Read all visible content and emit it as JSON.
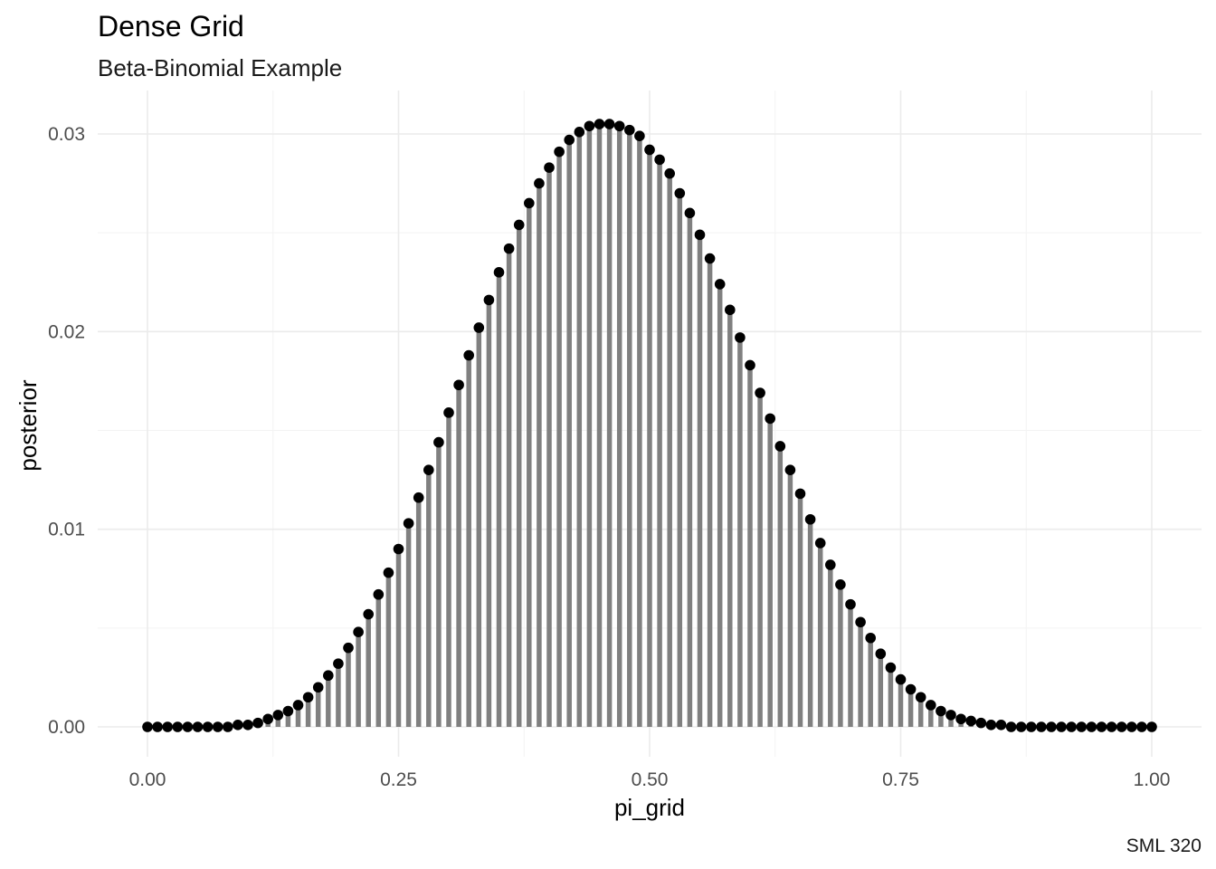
{
  "chart_data": {
    "type": "lollipop",
    "title": "Dense Grid",
    "subtitle": "Beta-Binomial Example",
    "xlabel": "pi_grid",
    "ylabel": "posterior",
    "caption": "SML 320",
    "xlim": [
      0,
      1
    ],
    "ylim": [
      0,
      0.031
    ],
    "x_ticks": [
      0,
      0.25,
      0.5,
      0.75,
      1
    ],
    "x_tick_labels": [
      "0.00",
      "0.25",
      "0.50",
      "0.75",
      "1.00"
    ],
    "y_ticks": [
      0,
      0.01,
      0.02,
      0.03
    ],
    "y_tick_labels": [
      "0.00",
      "0.01",
      "0.02",
      "0.03"
    ],
    "grid": true,
    "legend": "none",
    "segment_color": "#808080",
    "point_color": "#000000",
    "x": [
      0.0,
      0.01,
      0.02,
      0.03,
      0.04,
      0.05,
      0.06,
      0.07,
      0.08,
      0.09,
      0.1,
      0.11,
      0.12,
      0.13,
      0.14,
      0.15,
      0.16,
      0.17,
      0.18,
      0.19,
      0.2,
      0.21,
      0.22,
      0.23,
      0.24,
      0.25,
      0.26,
      0.27,
      0.28,
      0.29,
      0.3,
      0.31,
      0.32,
      0.33,
      0.34,
      0.35,
      0.36,
      0.37,
      0.38,
      0.39,
      0.4,
      0.41,
      0.42,
      0.43,
      0.44,
      0.45,
      0.46,
      0.47,
      0.48,
      0.49,
      0.5,
      0.51,
      0.52,
      0.53,
      0.54,
      0.55,
      0.56,
      0.57,
      0.58,
      0.59,
      0.6,
      0.61,
      0.62,
      0.63,
      0.64,
      0.65,
      0.66,
      0.67,
      0.68,
      0.69,
      0.7,
      0.71,
      0.72,
      0.73,
      0.74,
      0.75,
      0.76,
      0.77,
      0.78,
      0.79,
      0.8,
      0.81,
      0.82,
      0.83,
      0.84,
      0.85,
      0.86,
      0.87,
      0.88,
      0.89,
      0.9,
      0.91,
      0.92,
      0.93,
      0.94,
      0.95,
      0.96,
      0.97,
      0.98,
      0.99,
      1.0
    ],
    "y": [
      0.0,
      0.0,
      0.0,
      0.0,
      0.0,
      0.0,
      0.0,
      0.0,
      0.0,
      0.0001,
      0.0001,
      0.0002,
      0.0004,
      0.0006,
      0.0008,
      0.0011,
      0.0015,
      0.002,
      0.0026,
      0.0032,
      0.004,
      0.0048,
      0.0057,
      0.0067,
      0.0078,
      0.009,
      0.0103,
      0.0116,
      0.013,
      0.0144,
      0.0159,
      0.0173,
      0.0188,
      0.0202,
      0.0216,
      0.023,
      0.0242,
      0.0254,
      0.0265,
      0.0275,
      0.0283,
      0.0291,
      0.0297,
      0.0301,
      0.0304,
      0.0305,
      0.0305,
      0.0304,
      0.0302,
      0.0299,
      0.0292,
      0.0287,
      0.028,
      0.027,
      0.026,
      0.0249,
      0.0237,
      0.0224,
      0.0211,
      0.0197,
      0.0183,
      0.0169,
      0.0156,
      0.0142,
      0.013,
      0.0118,
      0.0105,
      0.0093,
      0.0082,
      0.0072,
      0.0062,
      0.0053,
      0.0045,
      0.0037,
      0.003,
      0.0024,
      0.0019,
      0.0015,
      0.0011,
      0.0008,
      0.0006,
      0.0004,
      0.0003,
      0.0002,
      0.0001,
      0.0001,
      0.0,
      0.0,
      0.0,
      0.0,
      0.0,
      0.0,
      0.0,
      0.0,
      0.0,
      0.0,
      0.0,
      0.0,
      0.0,
      0.0,
      0.0
    ]
  }
}
